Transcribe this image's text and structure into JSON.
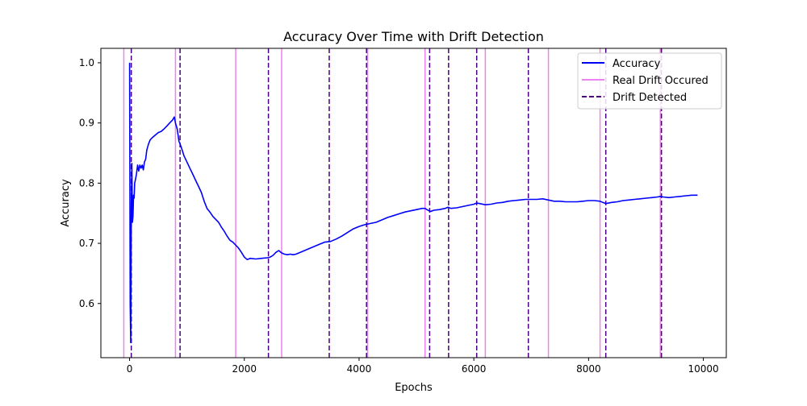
{
  "chart_data": {
    "type": "line",
    "title": "Accuracy Over Time with Drift Detection",
    "xlabel": "Epochs",
    "ylabel": "Accuracy",
    "xlim": [
      -500,
      10400
    ],
    "ylim": [
      0.51,
      1.024
    ],
    "xticks": [
      0,
      2000,
      4000,
      6000,
      8000,
      10000
    ],
    "yticks": [
      0.6,
      0.7,
      0.8,
      0.9,
      1.0
    ],
    "xtick_labels": [
      "0",
      "2000",
      "4000",
      "6000",
      "8000",
      "10000"
    ],
    "ytick_labels": [
      "0.6",
      "0.7",
      "0.8",
      "0.9",
      "1.0"
    ],
    "grid": false,
    "legend_position": "top-right",
    "series": [
      {
        "name": "Accuracy",
        "color": "#0000ff",
        "style": "solid",
        "x": [
          0,
          10,
          20,
          30,
          40,
          50,
          60,
          70,
          80,
          90,
          100,
          120,
          140,
          160,
          180,
          200,
          220,
          240,
          260,
          280,
          300,
          330,
          360,
          400,
          450,
          500,
          550,
          600,
          650,
          700,
          750,
          780,
          800,
          830,
          860,
          900,
          950,
          1000,
          1050,
          1100,
          1150,
          1200,
          1250,
          1300,
          1350,
          1400,
          1450,
          1500,
          1550,
          1600,
          1650,
          1700,
          1750,
          1800,
          1850,
          1900,
          1950,
          2000,
          2050,
          2100,
          2200,
          2300,
          2400,
          2450,
          2500,
          2550,
          2600,
          2650,
          2700,
          2750,
          2800,
          2850,
          2900,
          2950,
          3000,
          3100,
          3200,
          3300,
          3400,
          3500,
          3600,
          3700,
          3800,
          3900,
          4000,
          4100,
          4200,
          4300,
          4400,
          4500,
          4600,
          4700,
          4800,
          4900,
          5000,
          5100,
          5150,
          5200,
          5250,
          5300,
          5400,
          5500,
          5550,
          5600,
          5700,
          5800,
          5900,
          6000,
          6050,
          6100,
          6200,
          6300,
          6400,
          6500,
          6600,
          6700,
          6800,
          6900,
          7000,
          7100,
          7200,
          7300,
          7400,
          7500,
          7600,
          7700,
          7800,
          7900,
          8000,
          8100,
          8200,
          8250,
          8300,
          8400,
          8500,
          8600,
          8700,
          8800,
          8900,
          9000,
          9100,
          9200,
          9250,
          9300,
          9400,
          9500,
          9600,
          9700,
          9800,
          9900
        ],
        "y": [
          1.0,
          0.6,
          0.535,
          0.76,
          0.833,
          0.735,
          0.745,
          0.78,
          0.775,
          0.8,
          0.805,
          0.815,
          0.83,
          0.82,
          0.83,
          0.825,
          0.83,
          0.822,
          0.835,
          0.84,
          0.855,
          0.865,
          0.872,
          0.876,
          0.88,
          0.884,
          0.886,
          0.89,
          0.895,
          0.9,
          0.905,
          0.91,
          0.9,
          0.89,
          0.87,
          0.86,
          0.845,
          0.835,
          0.825,
          0.815,
          0.805,
          0.795,
          0.785,
          0.77,
          0.758,
          0.752,
          0.745,
          0.74,
          0.735,
          0.727,
          0.72,
          0.712,
          0.705,
          0.702,
          0.697,
          0.692,
          0.685,
          0.677,
          0.673,
          0.675,
          0.674,
          0.675,
          0.676,
          0.677,
          0.68,
          0.685,
          0.688,
          0.684,
          0.682,
          0.681,
          0.682,
          0.681,
          0.682,
          0.684,
          0.686,
          0.69,
          0.694,
          0.698,
          0.702,
          0.703,
          0.707,
          0.712,
          0.718,
          0.724,
          0.728,
          0.731,
          0.733,
          0.735,
          0.739,
          0.743,
          0.746,
          0.749,
          0.752,
          0.754,
          0.756,
          0.758,
          0.758,
          0.755,
          0.753,
          0.755,
          0.756,
          0.758,
          0.76,
          0.758,
          0.759,
          0.761,
          0.763,
          0.765,
          0.767,
          0.766,
          0.764,
          0.765,
          0.767,
          0.768,
          0.77,
          0.771,
          0.772,
          0.773,
          0.773,
          0.773,
          0.774,
          0.772,
          0.77,
          0.77,
          0.769,
          0.769,
          0.769,
          0.77,
          0.771,
          0.771,
          0.77,
          0.768,
          0.766,
          0.768,
          0.769,
          0.771,
          0.772,
          0.773,
          0.774,
          0.775,
          0.776,
          0.777,
          0.778,
          0.777,
          0.776,
          0.777,
          0.778,
          0.779,
          0.78,
          0.78
        ]
      },
      {
        "name": "Real Drift Occured",
        "color": "#ee82ee",
        "style": "vertical-solid",
        "x": [
          -100,
          800,
          1850,
          2650,
          4150,
          5150,
          6200,
          7300,
          8200,
          9250
        ]
      },
      {
        "name": "Drift Detected",
        "color": "#4b0082",
        "style": "vertical-dashed",
        "x": [
          30,
          880,
          2420,
          3480,
          4130,
          5230,
          5560,
          6050,
          6950,
          8300,
          9270
        ]
      }
    ]
  }
}
